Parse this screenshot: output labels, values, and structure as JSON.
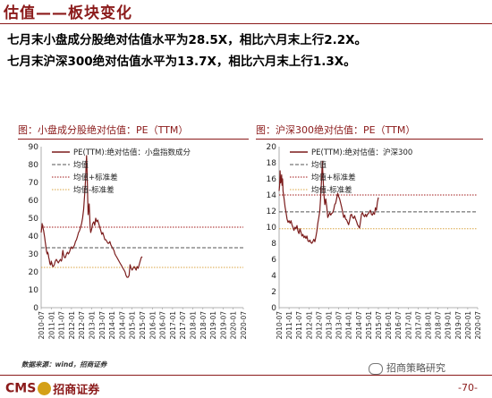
{
  "page": {
    "title": "估值——板块变化",
    "headline_1": "七月末小盘成分股绝对估值水平为28.5X，相比六月末上行2.2X。",
    "headline_2": "七月末沪深300绝对估值水平为13.7X，相比六月末上行1.3X。",
    "source": "数据来源：wind，招商证券",
    "brand_logo": "CMS",
    "brand_name": "招商证券",
    "wechat_label": "招商策略研究",
    "page_number": "-70-"
  },
  "colors": {
    "accent": "#8b1a1a",
    "pe_line": "#7b1c1c",
    "mean": "#555555",
    "plus_sd": "#a01818",
    "minus_sd": "#d9a441"
  },
  "chart_data": [
    {
      "type": "line",
      "title": "图：小盘成分股绝对估值：PE（TTM）",
      "legend": [
        "PE(TTM):绝对估值：小盘指数成分",
        "均值",
        "均值+标准差",
        "均值-标准差"
      ],
      "legend_position": "top-right",
      "x_ticks": [
        "2010-07",
        "2011-01",
        "2011-07",
        "2012-01",
        "2012-07",
        "2013-01",
        "2013-07",
        "2014-01",
        "2014-07",
        "2015-01",
        "2015-07",
        "2016-01",
        "2016-07",
        "2017-01",
        "2017-07",
        "2018-01",
        "2018-07",
        "2019-01",
        "2019-07",
        "2020-01",
        "2020-07"
      ],
      "ylim": [
        0,
        90
      ],
      "yticks": [
        0,
        10,
        20,
        30,
        40,
        50,
        60,
        70,
        80,
        90
      ],
      "grid": false,
      "reference_lines": {
        "mean": 33.5,
        "mean_plus_sd": 45,
        "mean_minus_sd": 22.5
      },
      "series": [
        {
          "name": "PE(TTM):绝对估值：小盘指数成分",
          "points": [
            [
              0,
              42
            ],
            [
              0.04,
              44
            ],
            [
              0.08,
              45
            ],
            [
              0.1,
              47
            ],
            [
              0.13,
              45
            ],
            [
              0.16,
              46
            ],
            [
              0.2,
              44
            ],
            [
              0.25,
              43
            ],
            [
              0.3,
              41
            ],
            [
              0.35,
              39
            ],
            [
              0.4,
              37
            ],
            [
              0.45,
              35
            ],
            [
              0.5,
              33
            ],
            [
              0.55,
              31
            ],
            [
              0.6,
              30
            ],
            [
              0.65,
              31
            ],
            [
              0.7,
              30
            ],
            [
              0.75,
              28
            ],
            [
              0.8,
              27
            ],
            [
              0.85,
              25
            ],
            [
              0.9,
              24
            ],
            [
              0.95,
              24
            ],
            [
              1.0,
              26
            ],
            [
              1.05,
              25
            ],
            [
              1.1,
              24
            ],
            [
              1.15,
              23
            ],
            [
              1.2,
              23
            ],
            [
              1.3,
              24
            ],
            [
              1.4,
              26
            ],
            [
              1.5,
              27
            ],
            [
              1.6,
              26
            ],
            [
              1.7,
              25
            ],
            [
              1.8,
              26
            ],
            [
              1.9,
              27
            ],
            [
              2.0,
              26
            ],
            [
              2.05,
              27
            ],
            [
              2.1,
              30
            ],
            [
              2.15,
              32
            ],
            [
              2.2,
              30
            ],
            [
              2.3,
              28
            ],
            [
              2.4,
              28
            ],
            [
              2.5,
              30
            ],
            [
              2.6,
              31
            ],
            [
              2.7,
              30
            ],
            [
              2.8,
              31
            ],
            [
              2.9,
              33
            ],
            [
              3.0,
              34
            ],
            [
              3.1,
              33
            ],
            [
              3.2,
              34
            ],
            [
              3.3,
              35
            ],
            [
              3.4,
              37
            ],
            [
              3.5,
              38
            ],
            [
              3.6,
              40
            ],
            [
              3.7,
              42
            ],
            [
              3.8,
              43
            ],
            [
              3.9,
              45
            ],
            [
              4.0,
              47
            ],
            [
              4.1,
              50
            ],
            [
              4.2,
              55
            ],
            [
              4.3,
              63
            ],
            [
              4.4,
              72
            ],
            [
              4.45,
              80
            ],
            [
              4.5,
              85
            ],
            [
              4.55,
              75
            ],
            [
              4.6,
              62
            ],
            [
              4.65,
              52
            ],
            [
              4.7,
              55
            ],
            [
              4.75,
              58
            ],
            [
              4.8,
              52
            ],
            [
              4.85,
              45
            ],
            [
              4.9,
              42
            ],
            [
              5.0,
              44
            ],
            [
              5.1,
              47
            ],
            [
              5.2,
              48
            ],
            [
              5.3,
              46
            ],
            [
              5.4,
              50
            ],
            [
              5.5,
              48
            ],
            [
              5.6,
              49
            ],
            [
              5.7,
              47
            ],
            [
              5.8,
              45
            ],
            [
              5.9,
              43
            ],
            [
              6.0,
              41
            ],
            [
              6.1,
              42
            ],
            [
              6.2,
              40
            ],
            [
              6.3,
              38
            ],
            [
              6.4,
              38
            ],
            [
              6.5,
              37
            ],
            [
              6.6,
              36
            ],
            [
              6.7,
              36
            ],
            [
              6.8,
              37
            ],
            [
              6.9,
              35
            ],
            [
              7.0,
              34
            ],
            [
              7.1,
              33
            ],
            [
              7.2,
              32
            ],
            [
              7.3,
              30
            ],
            [
              7.4,
              29
            ],
            [
              7.5,
              28
            ],
            [
              7.6,
              27
            ],
            [
              7.7,
              26
            ],
            [
              7.8,
              25
            ],
            [
              7.9,
              24
            ],
            [
              8.0,
              23
            ],
            [
              8.1,
              22
            ],
            [
              8.2,
              21
            ],
            [
              8.3,
              20
            ],
            [
              8.4,
              18
            ],
            [
              8.5,
              17
            ],
            [
              8.6,
              17
            ],
            [
              8.7,
              18
            ],
            [
              8.8,
              24
            ],
            [
              8.9,
              22
            ],
            [
              9.0,
              21
            ],
            [
              9.1,
              22
            ],
            [
              9.2,
              23
            ],
            [
              9.3,
              22
            ],
            [
              9.4,
              21
            ],
            [
              9.5,
              23
            ],
            [
              9.6,
              22
            ],
            [
              9.7,
              24
            ],
            [
              9.8,
              26
            ],
            [
              9.9,
              28
            ],
            [
              10.0,
              28.5
            ]
          ]
        }
      ]
    },
    {
      "type": "line",
      "title": "图：沪深300绝对估值：PE（TTM）",
      "legend": [
        "PE(TTM):绝对估值：沪深300",
        "均值",
        "均值+标准差",
        "均值-标准差"
      ],
      "legend_position": "top-right",
      "x_ticks": [
        "2010-07",
        "2011-01",
        "2011-07",
        "2012-01",
        "2012-07",
        "2013-01",
        "2013-07",
        "2014-01",
        "2014-07",
        "2015-01",
        "2015-07",
        "2016-01",
        "2016-07",
        "2017-01",
        "2017-07",
        "2018-01",
        "2018-07",
        "2019-01",
        "2019-07",
        "2020-01",
        "2020-07"
      ],
      "ylim": [
        0,
        20
      ],
      "yticks": [
        0,
        2,
        4,
        6,
        8,
        10,
        12,
        14,
        16,
        18,
        20
      ],
      "grid": false,
      "reference_lines": {
        "mean": 11.9,
        "mean_plus_sd": 14,
        "mean_minus_sd": 9.8
      },
      "series": [
        {
          "name": "PE(TTM):绝对估值：沪深300",
          "points": [
            [
              0,
              14.5
            ],
            [
              0.05,
              15.2
            ],
            [
              0.1,
              17
            ],
            [
              0.15,
              15.5
            ],
            [
              0.2,
              15.8
            ],
            [
              0.25,
              16.5
            ],
            [
              0.3,
              15.2
            ],
            [
              0.35,
              16
            ],
            [
              0.4,
              14.5
            ],
            [
              0.5,
              13.5
            ],
            [
              0.6,
              12.5
            ],
            [
              0.7,
              11.8
            ],
            [
              0.8,
              11
            ],
            [
              0.9,
              10.6
            ],
            [
              1.0,
              10.8
            ],
            [
              1.1,
              10.5
            ],
            [
              1.2,
              10.8
            ],
            [
              1.3,
              10.3
            ],
            [
              1.4,
              10
            ],
            [
              1.5,
              9.6
            ],
            [
              1.6,
              10
            ],
            [
              1.7,
              9.8
            ],
            [
              1.8,
              10.2
            ],
            [
              1.9,
              9.5
            ],
            [
              2.0,
              9.2
            ],
            [
              2.1,
              9.8
            ],
            [
              2.2,
              9.4
            ],
            [
              2.3,
              8.9
            ],
            [
              2.4,
              9.1
            ],
            [
              2.5,
              8.7
            ],
            [
              2.6,
              8.9
            ],
            [
              2.7,
              8.6
            ],
            [
              2.8,
              8.9
            ],
            [
              2.9,
              8.3
            ],
            [
              3.0,
              8.2
            ],
            [
              3.1,
              8.4
            ],
            [
              3.2,
              8.1
            ],
            [
              3.3,
              8
            ],
            [
              3.4,
              8.2
            ],
            [
              3.5,
              8.5
            ],
            [
              3.6,
              8.2
            ],
            [
              3.7,
              8.8
            ],
            [
              3.8,
              9.5
            ],
            [
              3.9,
              10.5
            ],
            [
              4.0,
              11.2
            ],
            [
              4.1,
              12
            ],
            [
              4.2,
              14
            ],
            [
              4.3,
              16.5
            ],
            [
              4.35,
              18.2
            ],
            [
              4.4,
              17
            ],
            [
              4.5,
              14.2
            ],
            [
              4.6,
              12.8
            ],
            [
              4.7,
              13.5
            ],
            [
              4.8,
              12.5
            ],
            [
              4.9,
              11.2
            ],
            [
              5.0,
              11.5
            ],
            [
              5.1,
              11.8
            ],
            [
              5.2,
              11.5
            ],
            [
              5.3,
              11.7
            ],
            [
              5.4,
              11.8
            ],
            [
              5.5,
              12.2
            ],
            [
              5.6,
              12.8
            ],
            [
              5.7,
              13
            ],
            [
              5.8,
              13.6
            ],
            [
              5.9,
              14.2
            ],
            [
              6.0,
              13.8
            ],
            [
              6.1,
              13.5
            ],
            [
              6.2,
              13
            ],
            [
              6.3,
              12.5
            ],
            [
              6.4,
              11.9
            ],
            [
              6.5,
              11.2
            ],
            [
              6.6,
              11.5
            ],
            [
              6.7,
              11
            ],
            [
              6.8,
              10.9
            ],
            [
              6.9,
              10.6
            ],
            [
              7.0,
              10.3
            ],
            [
              7.1,
              10.8
            ],
            [
              7.2,
              11.5
            ],
            [
              7.3,
              11.6
            ],
            [
              7.4,
              11.2
            ],
            [
              7.5,
              11.1
            ],
            [
              7.6,
              11.4
            ],
            [
              7.7,
              11
            ],
            [
              7.8,
              10.7
            ],
            [
              7.9,
              10.3
            ],
            [
              8.0,
              10.1
            ],
            [
              8.1,
              9.9
            ],
            [
              8.2,
              10.7
            ],
            [
              8.3,
              11.6
            ],
            [
              8.4,
              11.8
            ],
            [
              8.5,
              11.5
            ],
            [
              8.6,
              11.3
            ],
            [
              8.7,
              11.6
            ],
            [
              8.8,
              11.3
            ],
            [
              8.9,
              11.6
            ],
            [
              9.0,
              11.7
            ],
            [
              9.1,
              11.9
            ],
            [
              9.2,
              12.1
            ],
            [
              9.3,
              11.6
            ],
            [
              9.4,
              11.5
            ],
            [
              9.5,
              11.8
            ],
            [
              9.6,
              11.6
            ],
            [
              9.7,
              12.4
            ],
            [
              9.8,
              12.1
            ],
            [
              9.9,
              13.1
            ],
            [
              10.0,
              13.7
            ]
          ]
        }
      ]
    }
  ]
}
